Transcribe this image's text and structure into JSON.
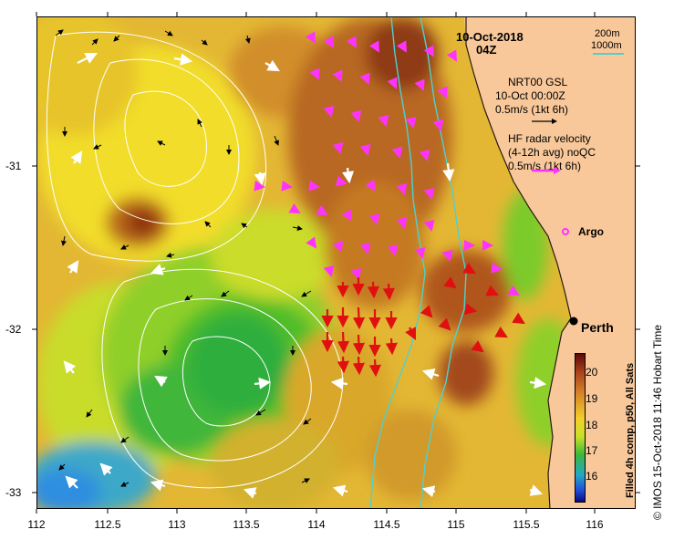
{
  "header": {
    "date": "10-Oct-2018",
    "time": "04Z"
  },
  "scale_legend": {
    "line1": "200m",
    "line2": "1000m"
  },
  "gsl_legend": {
    "title": "NRT00 GSL",
    "date": "10-Oct 00:00Z",
    "speed": "0.5m/s (1kt 6h)"
  },
  "hf_legend": {
    "title": "HF radar velocity",
    "avg": "(4-12h avg) noQC",
    "speed": "0.5m/s (1kt 6h)"
  },
  "argo_label": "Argo",
  "city_label": "Perth",
  "colorbar": {
    "title": "Filled 4h comp, p50, All Sats",
    "ticks": [
      "20",
      "19",
      "18",
      "17",
      "16"
    ]
  },
  "credit": "© IMOS 15-Oct-2018 11:46 Hobart Time",
  "axes": {
    "x_ticks": [
      "112",
      "112.5",
      "113",
      "113.5",
      "114",
      "114.5",
      "115",
      "115.5",
      "116"
    ],
    "y_ticks": [
      "-31",
      "-32",
      "-33"
    ]
  },
  "colors": {
    "land": "#f9c89a",
    "warm": "#b85a1c",
    "cool": "#23a63a",
    "radar_vectors": "#ff33ff",
    "strong_vectors": "#e01010",
    "contour_200m": "#1a1a1a",
    "contour_1000m": "#4fd0d0"
  }
}
